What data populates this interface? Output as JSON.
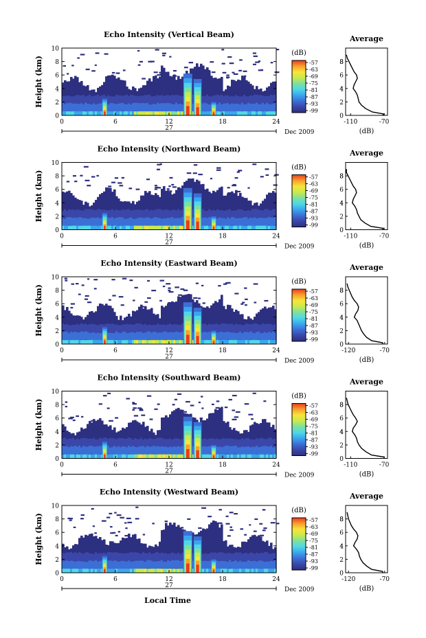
{
  "figure": {
    "date_label": "Dec 2009",
    "day_label": "27",
    "xlabel": "Local Time",
    "ylabel": "Height (km)",
    "colorbar_unit": "(dB)",
    "profile_title": "Average",
    "profile_xlabel": "(dB)"
  },
  "colors": {
    "colormap": [
      "#2d2f80",
      "#3a47a8",
      "#3c6fd6",
      "#3aa6ee",
      "#4fd8e6",
      "#7ee0a0",
      "#c8ea4c",
      "#f8e43a",
      "#f8a02c",
      "#e83c20"
    ],
    "background_echo": "#2d2f80"
  },
  "chart_data": [
    {
      "type": "heatmap",
      "title": "Echo Intensity (Vertical Beam)",
      "x_ticks": [
        "0",
        "6",
        "12",
        "18",
        "24"
      ],
      "x_range": [
        0,
        24
      ],
      "y_ticks": [
        "0",
        "2",
        "4",
        "6",
        "8",
        "10"
      ],
      "y_range": [
        0,
        10
      ],
      "colorbar_ticks": [
        "-57",
        "-63",
        "-69",
        "-75",
        "-81",
        "-87",
        "-93",
        "-99"
      ],
      "profile": {
        "title": "Average",
        "x_ticks": [
          "-110",
          "-70"
        ],
        "x_range": [
          -116,
          -66
        ],
        "height": [
          0,
          0.2,
          0.5,
          1.0,
          1.5,
          2.0,
          2.5,
          3.0,
          3.5,
          4.0,
          4.5,
          5.0,
          5.5,
          6.0,
          6.5,
          7.0,
          7.5,
          8.0,
          8.5,
          9.0
        ],
        "value": [
          -72,
          -70,
          -84,
          -92,
          -97,
          -100,
          -101,
          -102,
          -104,
          -107,
          -106,
          -104,
          -102,
          -103,
          -106,
          -108,
          -110,
          -112,
          -114,
          -115
        ]
      }
    },
    {
      "type": "heatmap",
      "title": "Echo Intensity (Northward Beam)",
      "x_ticks": [
        "0",
        "6",
        "12",
        "18",
        "24"
      ],
      "x_range": [
        0,
        24
      ],
      "y_ticks": [
        "0",
        "2",
        "4",
        "6",
        "8",
        "10"
      ],
      "y_range": [
        0,
        10
      ],
      "colorbar_ticks": [
        "-57",
        "-63",
        "-69",
        "-75",
        "-81",
        "-87",
        "-93",
        "-99"
      ],
      "profile": {
        "title": "Average",
        "x_ticks": [
          "-110",
          "-70"
        ],
        "x_range": [
          -116,
          -66
        ],
        "height": [
          0,
          0.2,
          0.5,
          1.0,
          1.5,
          2.0,
          2.5,
          3.0,
          3.5,
          4.0,
          4.5,
          5.0,
          5.5,
          6.0,
          6.5,
          7.0,
          7.5,
          8.0,
          8.5,
          9.0
        ],
        "value": [
          -72,
          -71,
          -86,
          -93,
          -98,
          -100,
          -102,
          -103,
          -105,
          -108,
          -107,
          -105,
          -103,
          -104,
          -107,
          -109,
          -111,
          -113,
          -115,
          -115
        ]
      }
    },
    {
      "type": "heatmap",
      "title": "Echo Intensity (Eastward Beam)",
      "x_ticks": [
        "0",
        "6",
        "12",
        "18",
        "24"
      ],
      "x_range": [
        0,
        24
      ],
      "y_ticks": [
        "0",
        "2",
        "4",
        "6",
        "8",
        "10"
      ],
      "y_range": [
        0,
        10
      ],
      "colorbar_ticks": [
        "-57",
        "-63",
        "-69",
        "-75",
        "-81",
        "-87",
        "-93",
        "-99"
      ],
      "profile": {
        "title": "Average",
        "x_ticks": [
          "-120",
          "-70"
        ],
        "x_range": [
          -124,
          -66
        ],
        "height": [
          0,
          0.2,
          0.5,
          1.0,
          1.5,
          2.0,
          2.5,
          3.0,
          3.5,
          4.0,
          4.5,
          5.0,
          5.5,
          6.0,
          6.5,
          7.0,
          7.5,
          8.0,
          8.5,
          9.0
        ],
        "value": [
          -72,
          -73,
          -88,
          -95,
          -99,
          -102,
          -104,
          -106,
          -108,
          -112,
          -110,
          -107,
          -106,
          -108,
          -112,
          -115,
          -117,
          -119,
          -121,
          -122
        ]
      }
    },
    {
      "type": "heatmap",
      "title": "Echo Intensity (Southward Beam)",
      "x_ticks": [
        "0",
        "6",
        "12",
        "18",
        "24"
      ],
      "x_range": [
        0,
        24
      ],
      "y_ticks": [
        "0",
        "2",
        "4",
        "6",
        "8",
        "10"
      ],
      "y_range": [
        0,
        10
      ],
      "colorbar_ticks": [
        "-57",
        "-63",
        "-69",
        "-75",
        "-81",
        "-87",
        "-93",
        "-99"
      ],
      "profile": {
        "title": "Average",
        "x_ticks": [
          "-110",
          "-70"
        ],
        "x_range": [
          -116,
          -66
        ],
        "height": [
          0,
          0.2,
          0.5,
          1.0,
          1.5,
          2.0,
          2.5,
          3.0,
          3.5,
          4.0,
          4.5,
          5.0,
          5.5,
          6.0,
          6.5,
          7.0,
          7.5,
          8.0,
          8.5,
          9.0
        ],
        "value": [
          -70,
          -70,
          -85,
          -92,
          -97,
          -100,
          -102,
          -103,
          -105,
          -108,
          -107,
          -104,
          -102,
          -104,
          -107,
          -109,
          -111,
          -113,
          -114,
          -115
        ]
      }
    },
    {
      "type": "heatmap",
      "title": "Echo Intensity (Westward Beam)",
      "x_ticks": [
        "0",
        "6",
        "12",
        "18",
        "24"
      ],
      "x_range": [
        0,
        24
      ],
      "y_ticks": [
        "0",
        "2",
        "4",
        "6",
        "8",
        "10"
      ],
      "y_range": [
        0,
        10
      ],
      "colorbar_ticks": [
        "-57",
        "-63",
        "-69",
        "-75",
        "-81",
        "-87",
        "-93",
        "-99"
      ],
      "profile": {
        "title": "Average",
        "x_ticks": [
          "-120",
          "-70"
        ],
        "x_range": [
          -124,
          -66
        ],
        "height": [
          0,
          0.2,
          0.5,
          1.0,
          1.5,
          2.0,
          2.5,
          3.0,
          3.5,
          4.0,
          4.5,
          5.0,
          5.5,
          6.0,
          6.5,
          7.0,
          7.5,
          8.0,
          8.5,
          9.0
        ],
        "value": [
          -72,
          -73,
          -88,
          -95,
          -100,
          -103,
          -105,
          -106,
          -109,
          -113,
          -111,
          -108,
          -107,
          -109,
          -113,
          -116,
          -118,
          -120,
          -121,
          -122
        ]
      }
    }
  ]
}
